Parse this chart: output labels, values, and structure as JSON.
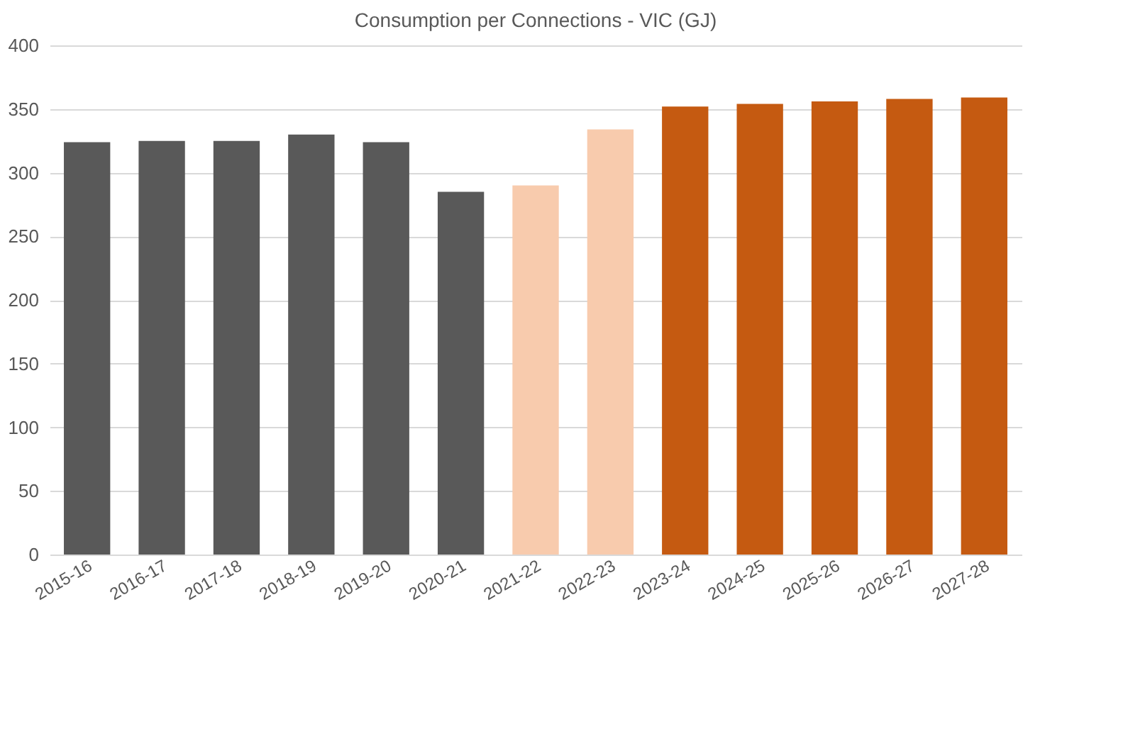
{
  "chart_data": {
    "type": "bar",
    "title": "Consumption per Connections - VIC (GJ)",
    "categories": [
      "2015-16",
      "2016-17",
      "2017-18",
      "2018-19",
      "2019-20",
      "2020-21",
      "2021-22",
      "2022-23",
      "2023-24",
      "2024-25",
      "2025-26",
      "2026-27",
      "2027-28"
    ],
    "values": [
      324,
      325,
      325,
      330,
      324,
      285,
      290,
      334,
      352,
      354,
      356,
      358,
      359
    ],
    "colors": [
      "#595959",
      "#595959",
      "#595959",
      "#595959",
      "#595959",
      "#595959",
      "#f8cbad",
      "#f8cbad",
      "#c55a11",
      "#c55a11",
      "#c55a11",
      "#c55a11",
      "#c55a11"
    ],
    "ylim": [
      0,
      400
    ],
    "yticks": [
      0,
      50,
      100,
      150,
      200,
      250,
      300,
      350,
      400
    ],
    "grid": "y"
  }
}
